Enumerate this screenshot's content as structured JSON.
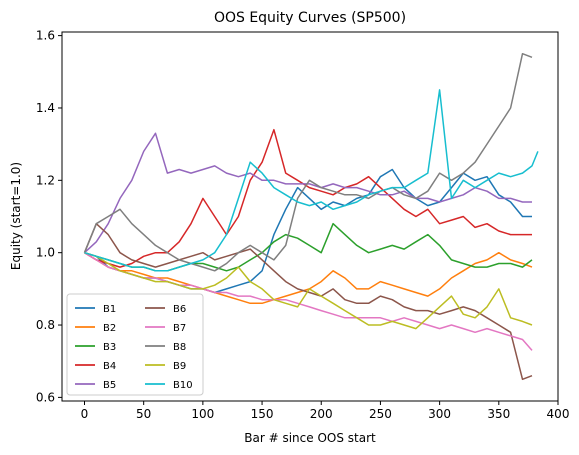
{
  "chart_data": {
    "type": "line",
    "title": "OOS Equity Curves (SP500)",
    "xlabel": "Bar # since OOS start",
    "ylabel": "Equity (start=1.0)",
    "xlim": [
      -19,
      400
    ],
    "ylim": [
      0.59,
      1.61
    ],
    "xticks": [
      0,
      50,
      100,
      150,
      200,
      250,
      300,
      350,
      400
    ],
    "yticks": [
      0.6,
      0.8,
      1.0,
      1.2,
      1.4,
      1.6
    ],
    "grid": false,
    "legend_position": "lower-left",
    "legend_columns": 2,
    "series": [
      {
        "name": "B1",
        "color": "#1f77b4",
        "x": [
          0,
          10,
          20,
          30,
          40,
          50,
          60,
          70,
          80,
          90,
          100,
          110,
          120,
          130,
          140,
          150,
          160,
          170,
          180,
          190,
          200,
          210,
          220,
          230,
          240,
          250,
          260,
          270,
          280,
          290,
          300,
          310,
          320,
          330,
          340,
          350,
          360,
          370,
          378
        ],
        "y": [
          1.0,
          0.99,
          0.96,
          0.95,
          0.94,
          0.93,
          0.93,
          0.92,
          0.91,
          0.9,
          0.9,
          0.89,
          0.9,
          0.91,
          0.92,
          0.95,
          1.05,
          1.12,
          1.18,
          1.15,
          1.12,
          1.14,
          1.13,
          1.15,
          1.16,
          1.21,
          1.23,
          1.18,
          1.15,
          1.13,
          1.14,
          1.18,
          1.22,
          1.2,
          1.21,
          1.16,
          1.14,
          1.1,
          1.1
        ]
      },
      {
        "name": "B2",
        "color": "#ff7f0e",
        "x": [
          0,
          10,
          20,
          30,
          40,
          50,
          60,
          70,
          80,
          90,
          100,
          110,
          120,
          130,
          140,
          150,
          160,
          170,
          180,
          190,
          200,
          210,
          220,
          230,
          240,
          250,
          260,
          270,
          280,
          290,
          300,
          310,
          320,
          330,
          340,
          350,
          360,
          370,
          378
        ],
        "y": [
          1.0,
          0.98,
          0.96,
          0.95,
          0.95,
          0.94,
          0.93,
          0.93,
          0.92,
          0.91,
          0.9,
          0.89,
          0.88,
          0.87,
          0.86,
          0.86,
          0.87,
          0.88,
          0.89,
          0.9,
          0.92,
          0.95,
          0.93,
          0.9,
          0.9,
          0.92,
          0.91,
          0.9,
          0.89,
          0.88,
          0.9,
          0.93,
          0.95,
          0.97,
          0.98,
          1.0,
          0.98,
          0.97,
          0.96
        ]
      },
      {
        "name": "B3",
        "color": "#2ca02c",
        "x": [
          0,
          10,
          20,
          30,
          40,
          50,
          60,
          70,
          80,
          90,
          100,
          110,
          120,
          130,
          140,
          150,
          160,
          170,
          180,
          190,
          200,
          210,
          220,
          230,
          240,
          250,
          260,
          270,
          280,
          290,
          300,
          310,
          320,
          330,
          340,
          350,
          360,
          370,
          378
        ],
        "y": [
          1.0,
          0.99,
          0.98,
          0.97,
          0.96,
          0.96,
          0.95,
          0.95,
          0.96,
          0.97,
          0.97,
          0.96,
          0.95,
          0.96,
          0.98,
          1.0,
          1.03,
          1.05,
          1.04,
          1.02,
          1.0,
          1.08,
          1.05,
          1.02,
          1.0,
          1.01,
          1.02,
          1.01,
          1.03,
          1.05,
          1.02,
          0.98,
          0.97,
          0.96,
          0.96,
          0.97,
          0.97,
          0.96,
          0.98
        ]
      },
      {
        "name": "B4",
        "color": "#d62728",
        "x": [
          0,
          10,
          20,
          30,
          40,
          50,
          60,
          70,
          80,
          90,
          100,
          110,
          120,
          130,
          140,
          150,
          160,
          170,
          180,
          190,
          200,
          210,
          220,
          230,
          240,
          250,
          260,
          270,
          280,
          290,
          300,
          310,
          320,
          330,
          340,
          350,
          360,
          370,
          378
        ],
        "y": [
          1.0,
          0.98,
          0.97,
          0.96,
          0.97,
          0.99,
          1.0,
          1.0,
          1.03,
          1.08,
          1.15,
          1.1,
          1.05,
          1.1,
          1.2,
          1.25,
          1.34,
          1.22,
          1.2,
          1.18,
          1.17,
          1.16,
          1.18,
          1.19,
          1.21,
          1.18,
          1.15,
          1.12,
          1.1,
          1.12,
          1.08,
          1.09,
          1.1,
          1.07,
          1.08,
          1.06,
          1.05,
          1.05,
          1.05
        ]
      },
      {
        "name": "B5",
        "color": "#9467bd",
        "x": [
          0,
          10,
          20,
          30,
          40,
          50,
          60,
          70,
          80,
          90,
          100,
          110,
          120,
          130,
          140,
          150,
          160,
          170,
          180,
          190,
          200,
          210,
          220,
          230,
          240,
          250,
          260,
          270,
          280,
          290,
          300,
          310,
          320,
          330,
          340,
          350,
          360,
          370,
          378
        ],
        "y": [
          1.0,
          1.03,
          1.08,
          1.15,
          1.2,
          1.28,
          1.33,
          1.22,
          1.23,
          1.22,
          1.23,
          1.24,
          1.22,
          1.21,
          1.22,
          1.2,
          1.2,
          1.19,
          1.19,
          1.19,
          1.18,
          1.19,
          1.18,
          1.18,
          1.17,
          1.16,
          1.16,
          1.17,
          1.15,
          1.15,
          1.14,
          1.15,
          1.16,
          1.18,
          1.17,
          1.15,
          1.15,
          1.14,
          1.14
        ]
      },
      {
        "name": "B6",
        "color": "#8c564b",
        "x": [
          0,
          10,
          20,
          30,
          40,
          50,
          60,
          70,
          80,
          90,
          100,
          110,
          120,
          130,
          140,
          150,
          160,
          170,
          180,
          190,
          200,
          210,
          220,
          230,
          240,
          250,
          260,
          270,
          280,
          290,
          300,
          310,
          320,
          330,
          340,
          350,
          360,
          370,
          378
        ],
        "y": [
          1.0,
          1.08,
          1.05,
          1.0,
          0.98,
          0.97,
          0.96,
          0.97,
          0.98,
          0.99,
          1.0,
          0.98,
          0.99,
          1.0,
          1.01,
          0.98,
          0.95,
          0.92,
          0.9,
          0.89,
          0.88,
          0.9,
          0.87,
          0.86,
          0.86,
          0.88,
          0.87,
          0.85,
          0.84,
          0.84,
          0.83,
          0.84,
          0.85,
          0.84,
          0.82,
          0.8,
          0.78,
          0.65,
          0.66
        ]
      },
      {
        "name": "B7",
        "color": "#e377c2",
        "x": [
          0,
          10,
          20,
          30,
          40,
          50,
          60,
          70,
          80,
          90,
          100,
          110,
          120,
          130,
          140,
          150,
          160,
          170,
          180,
          190,
          200,
          210,
          220,
          230,
          240,
          250,
          260,
          270,
          280,
          290,
          300,
          310,
          320,
          330,
          340,
          350,
          360,
          370,
          378
        ],
        "y": [
          1.0,
          0.98,
          0.96,
          0.95,
          0.94,
          0.93,
          0.93,
          0.92,
          0.91,
          0.91,
          0.9,
          0.89,
          0.89,
          0.88,
          0.88,
          0.87,
          0.87,
          0.87,
          0.86,
          0.85,
          0.84,
          0.83,
          0.82,
          0.82,
          0.82,
          0.82,
          0.81,
          0.82,
          0.81,
          0.8,
          0.79,
          0.8,
          0.79,
          0.78,
          0.79,
          0.78,
          0.77,
          0.76,
          0.73
        ]
      },
      {
        "name": "B8",
        "color": "#7f7f7f",
        "x": [
          0,
          10,
          20,
          30,
          40,
          50,
          60,
          70,
          80,
          90,
          100,
          110,
          120,
          130,
          140,
          150,
          160,
          170,
          180,
          190,
          200,
          210,
          220,
          230,
          240,
          250,
          260,
          270,
          280,
          290,
          300,
          310,
          320,
          330,
          340,
          350,
          360,
          370,
          378
        ],
        "y": [
          1.0,
          1.08,
          1.1,
          1.12,
          1.08,
          1.05,
          1.02,
          1.0,
          0.98,
          0.97,
          0.96,
          0.95,
          0.97,
          1.0,
          1.02,
          1.0,
          0.98,
          1.02,
          1.15,
          1.2,
          1.18,
          1.17,
          1.16,
          1.16,
          1.15,
          1.17,
          1.18,
          1.16,
          1.15,
          1.17,
          1.22,
          1.2,
          1.22,
          1.25,
          1.3,
          1.35,
          1.4,
          1.55,
          1.54
        ]
      },
      {
        "name": "B9",
        "color": "#bcbd22",
        "x": [
          0,
          10,
          20,
          30,
          40,
          50,
          60,
          70,
          80,
          90,
          100,
          110,
          120,
          130,
          140,
          150,
          160,
          170,
          180,
          190,
          200,
          210,
          220,
          230,
          240,
          250,
          260,
          270,
          280,
          290,
          300,
          310,
          320,
          330,
          340,
          350,
          360,
          370,
          378
        ],
        "y": [
          1.0,
          0.99,
          0.97,
          0.95,
          0.94,
          0.93,
          0.92,
          0.92,
          0.91,
          0.9,
          0.9,
          0.91,
          0.93,
          0.96,
          0.92,
          0.9,
          0.87,
          0.86,
          0.85,
          0.9,
          0.88,
          0.86,
          0.84,
          0.82,
          0.8,
          0.8,
          0.81,
          0.8,
          0.79,
          0.82,
          0.85,
          0.88,
          0.83,
          0.82,
          0.85,
          0.9,
          0.82,
          0.81,
          0.8
        ]
      },
      {
        "name": "B10",
        "color": "#17becf",
        "x": [
          0,
          10,
          20,
          30,
          40,
          50,
          60,
          70,
          80,
          90,
          100,
          110,
          120,
          130,
          140,
          150,
          160,
          170,
          180,
          190,
          200,
          210,
          220,
          230,
          240,
          250,
          260,
          270,
          280,
          290,
          300,
          310,
          320,
          330,
          340,
          350,
          360,
          370,
          378,
          383
        ],
        "y": [
          1.0,
          0.99,
          0.98,
          0.97,
          0.96,
          0.96,
          0.95,
          0.95,
          0.96,
          0.97,
          0.98,
          1.0,
          1.05,
          1.15,
          1.25,
          1.22,
          1.18,
          1.16,
          1.14,
          1.13,
          1.14,
          1.12,
          1.13,
          1.14,
          1.16,
          1.17,
          1.18,
          1.18,
          1.2,
          1.22,
          1.45,
          1.15,
          1.2,
          1.18,
          1.2,
          1.22,
          1.21,
          1.22,
          1.24,
          1.28
        ]
      }
    ]
  }
}
